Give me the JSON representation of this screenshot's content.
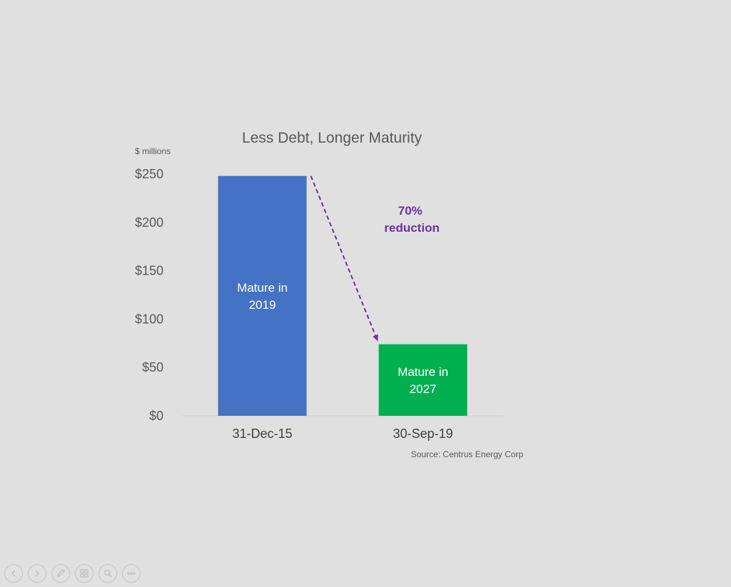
{
  "chart_data": {
    "type": "bar",
    "title": "Less Debt, Longer Maturity",
    "unit_label": "$ millions",
    "categories": [
      "31-Dec-15",
      "30-Sep-19"
    ],
    "values": [
      248,
      74
    ],
    "bar_labels": [
      [
        "Mature in",
        "2019"
      ],
      [
        "Mature in",
        "2027"
      ]
    ],
    "ylim": [
      0,
      250
    ],
    "yticks": [
      0,
      50,
      100,
      150,
      200,
      250
    ],
    "ytick_labels": [
      "$0",
      "$50",
      "$100",
      "$150",
      "$200",
      "$250"
    ],
    "annotation": [
      "70%",
      "reduction"
    ],
    "source": "Source: Centrus Energy Corp",
    "grid": false,
    "colors": {
      "bar1": "#4472c4",
      "bar2": "#00b050",
      "annotation": "#7030a0",
      "text": "#595959"
    }
  },
  "controls": [
    {
      "icon": "previous-slide-icon"
    },
    {
      "icon": "next-slide-icon"
    },
    {
      "icon": "pen-icon"
    },
    {
      "icon": "see-all-slides-icon"
    },
    {
      "icon": "zoom-icon"
    },
    {
      "icon": "more-options-icon"
    }
  ]
}
